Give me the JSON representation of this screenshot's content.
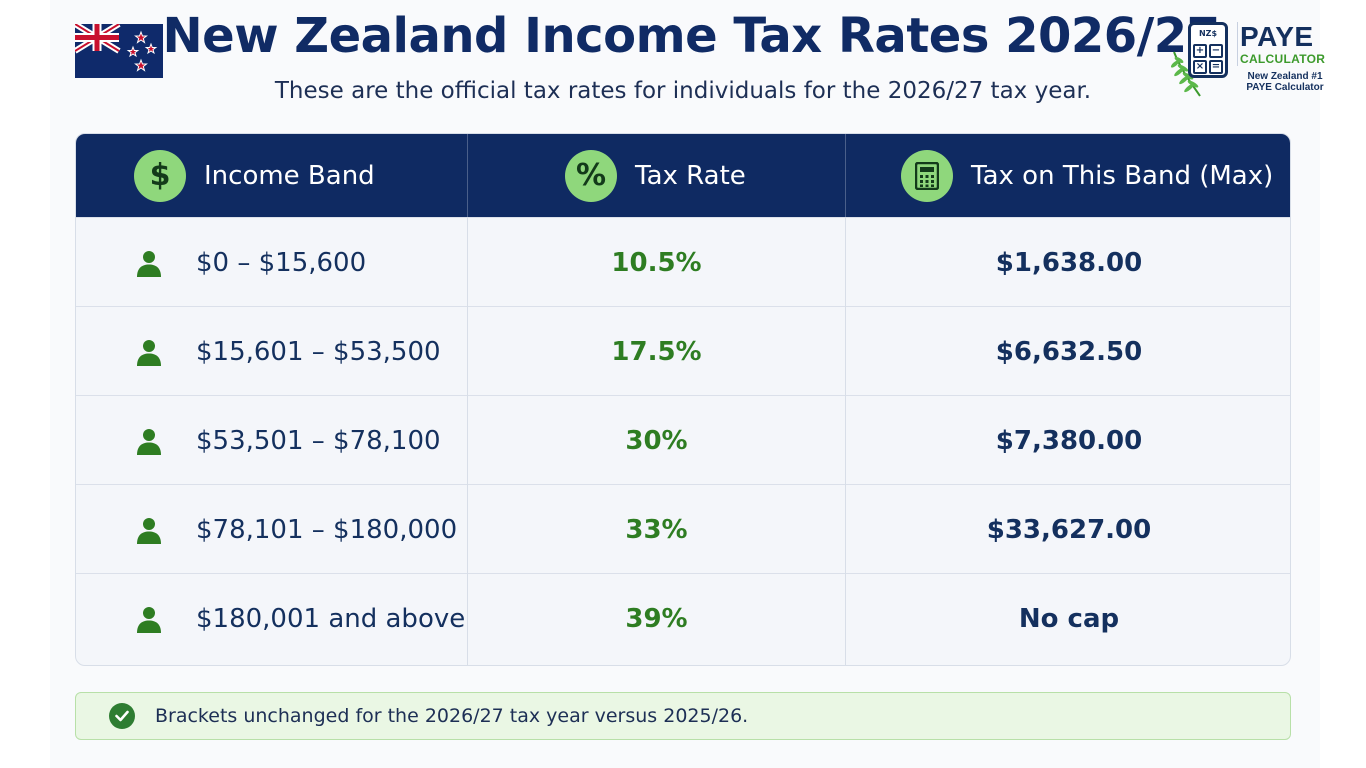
{
  "header": {
    "title": "New Zealand Income Tax Rates 2026/27",
    "subtitle": "These are the official tax rates for individuals for the 2026/27 tax year."
  },
  "logo": {
    "screen_text": "NZ$",
    "keys": [
      "+",
      "−",
      "×",
      "="
    ],
    "brand": "PAYE",
    "brand_sub": "CALCULATOR",
    "tagline_1": "New Zealand #1",
    "tagline_2": "PAYE Calculator"
  },
  "table": {
    "columns": [
      {
        "label": "Income Band",
        "icon": "dollar-icon",
        "glyph": "$"
      },
      {
        "label": "Tax Rate",
        "icon": "percent-icon",
        "glyph": "%"
      },
      {
        "label": "Tax on This Band (Max)",
        "icon": "calculator-icon",
        "glyph": ""
      }
    ],
    "rows": [
      {
        "band": "$0 – $15,600",
        "rate": "10.5%",
        "max": "$1,638.00"
      },
      {
        "band": "$15,601 – $53,500",
        "rate": "17.5%",
        "max": "$6,632.50"
      },
      {
        "band": "$53,501 – $78,100",
        "rate": "30%",
        "max": "$7,380.00"
      },
      {
        "band": "$78,101 – $180,000",
        "rate": "33%",
        "max": "$33,627.00"
      },
      {
        "band": "$180,001 and above",
        "rate": "39%",
        "max": "No cap"
      }
    ]
  },
  "note": {
    "text": "Brackets unchanged for the 2026/27 tax year versus 2025/26.",
    "icon": "check-circle-icon"
  },
  "colors": {
    "navy": "#0f2a62",
    "green": "#2e7d22",
    "icon_green": "#8fd77c",
    "note_bg": "#eaf7e4"
  }
}
